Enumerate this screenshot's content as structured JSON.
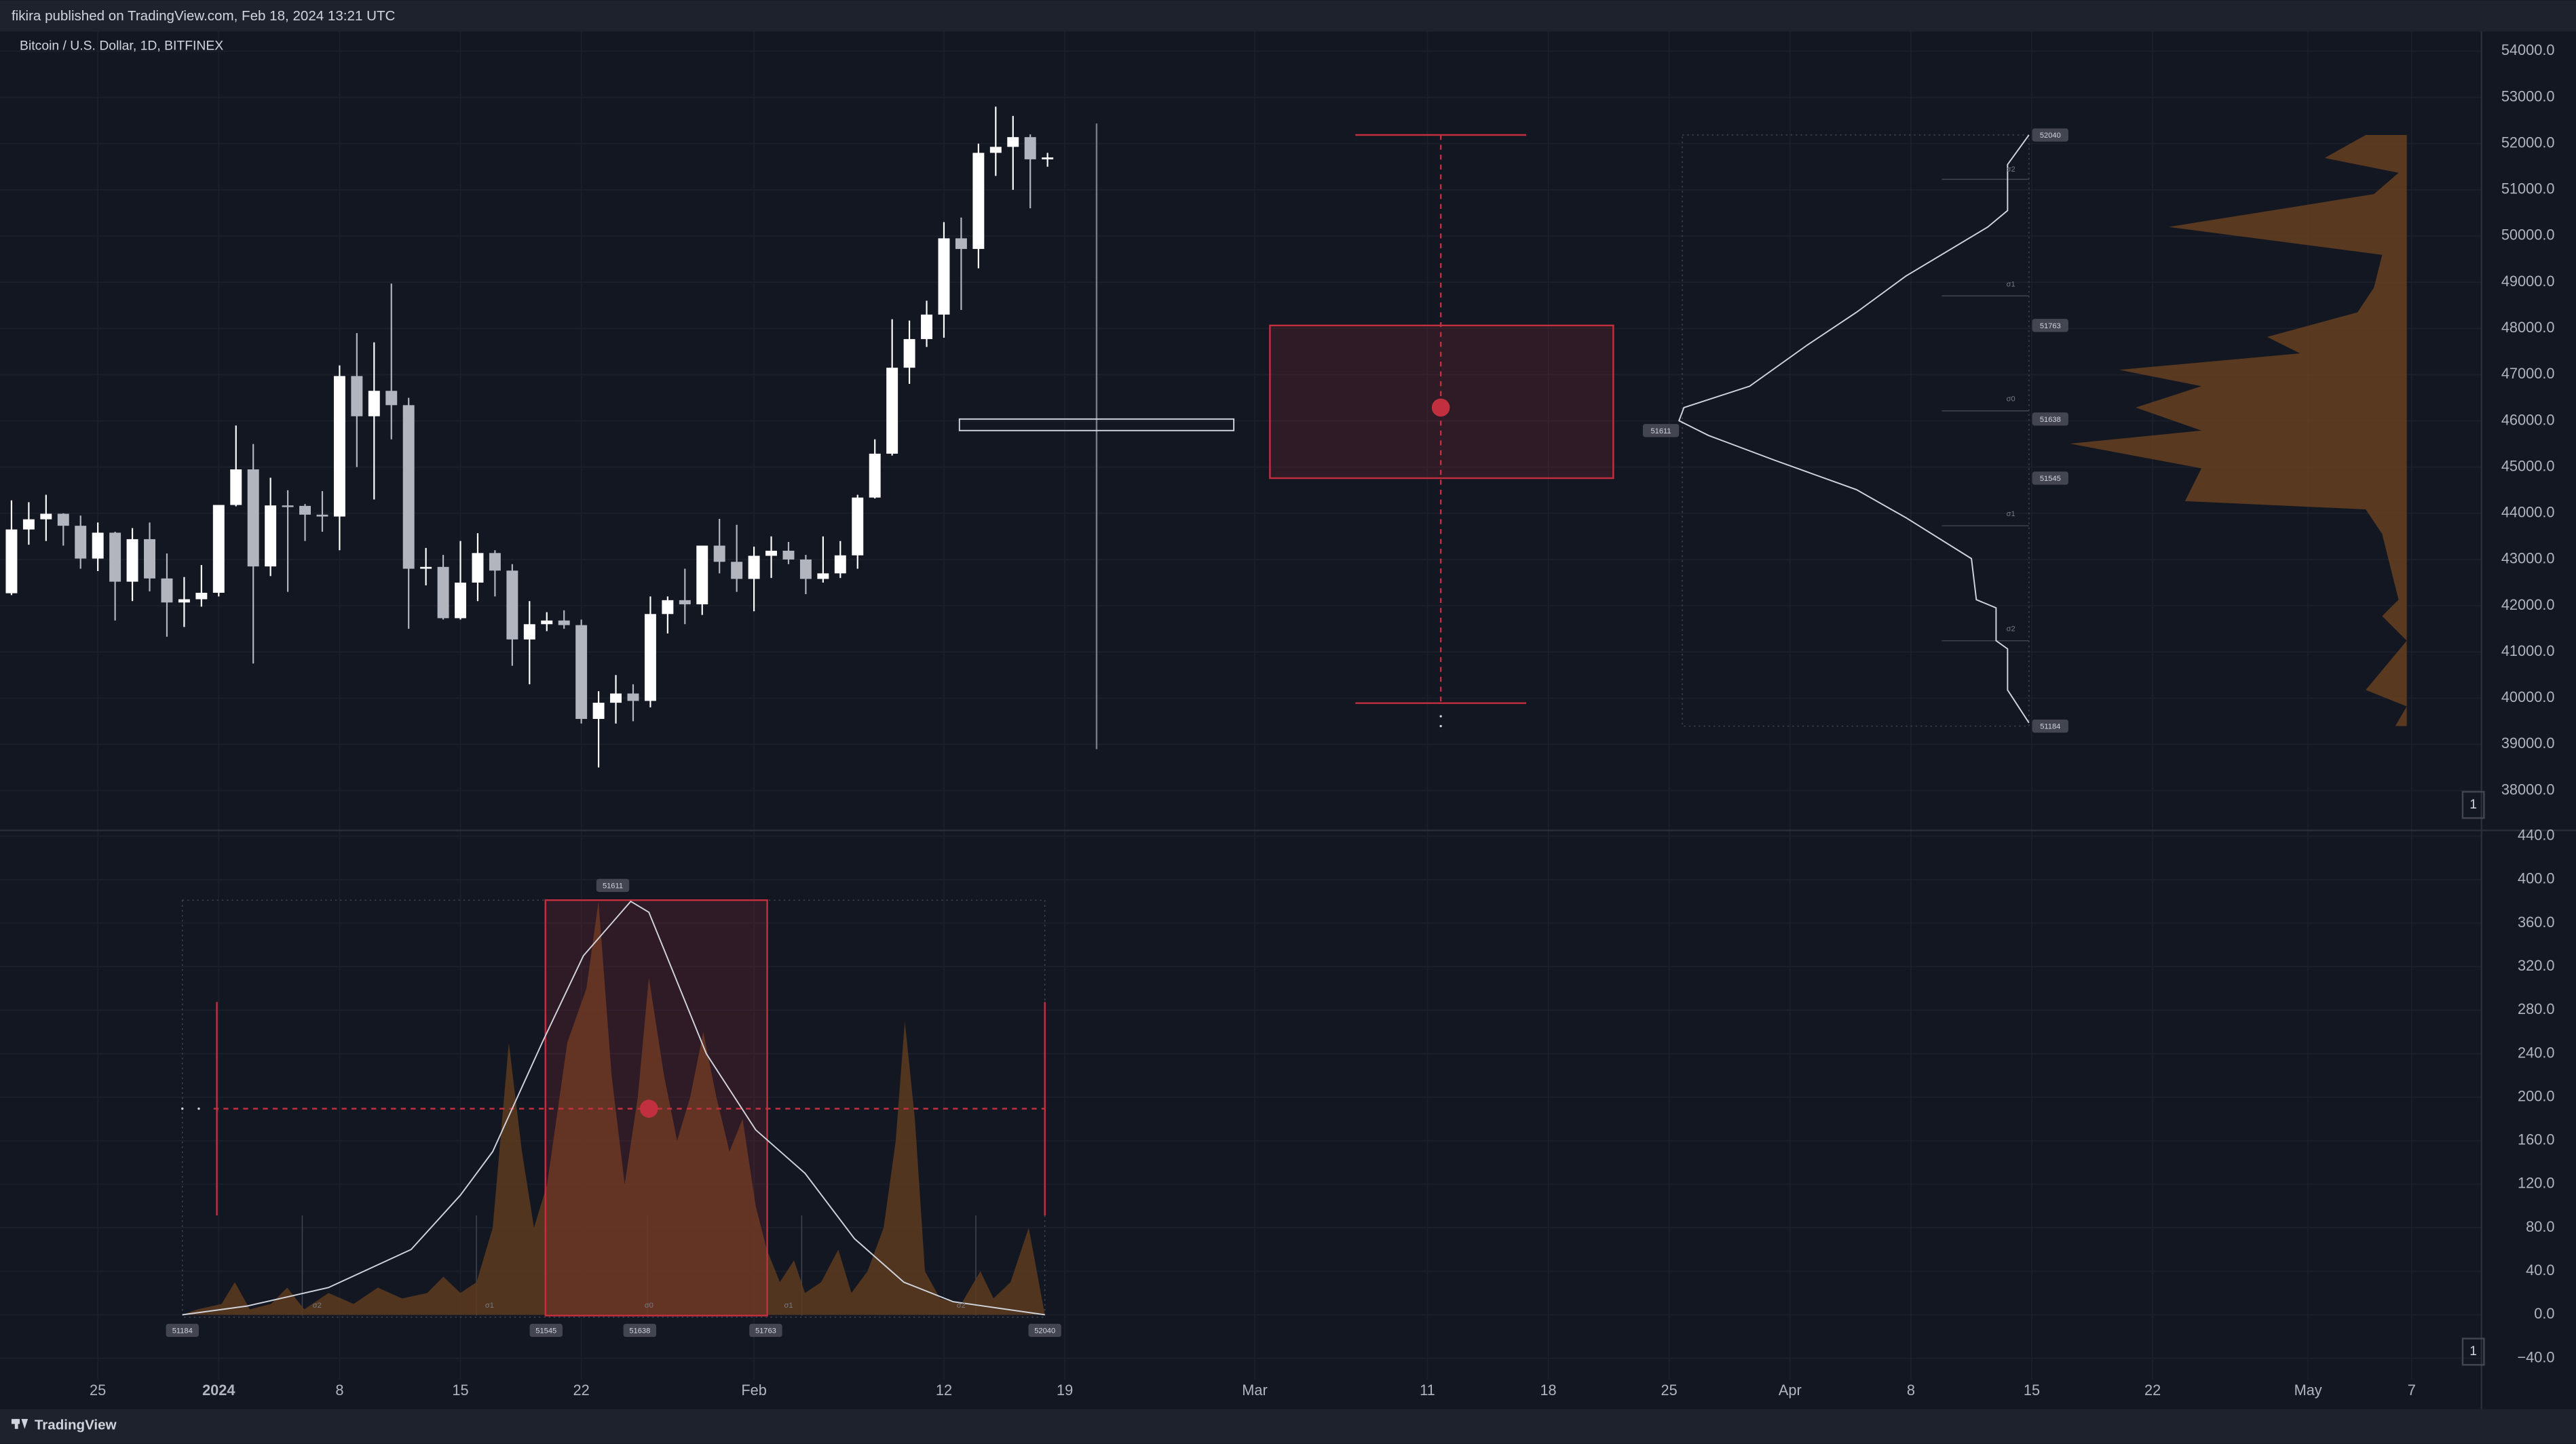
{
  "header": {
    "published": "fikira published on TradingView.com, Feb 18, 2024 13:21 UTC",
    "symbol": "Bitcoin / U.S. Dollar, 1D, BITFINEX"
  },
  "footer": {
    "brand": "TradingView"
  },
  "pane_buttons": [
    "1",
    "1"
  ],
  "chart_data": [
    {
      "type": "candlestick",
      "up_color": "#ffffff",
      "down_color": "#b2b5be",
      "grid": true,
      "x": [
        "Dec 20",
        "Dec 21",
        "Dec 22",
        "Dec 23",
        "Dec 24",
        "Dec 25",
        "Dec 26",
        "Dec 27",
        "Dec 28",
        "Dec 29",
        "Dec 30",
        "Dec 31",
        "Jan 1",
        "Jan 2",
        "Jan 3",
        "Jan 4",
        "Jan 5",
        "Jan 6",
        "Jan 7",
        "Jan 8",
        "Jan 9",
        "Jan 10",
        "Jan 11",
        "Jan 12",
        "Jan 13",
        "Jan 14",
        "Jan 15",
        "Jan 16",
        "Jan 17",
        "Jan 18",
        "Jan 19",
        "Jan 20",
        "Jan 21",
        "Jan 22",
        "Jan 23",
        "Jan 24",
        "Jan 25",
        "Jan 26",
        "Jan 27",
        "Jan 28",
        "Jan 29",
        "Jan 30",
        "Jan 31",
        "Feb 1",
        "Feb 2",
        "Feb 3",
        "Feb 4",
        "Feb 5",
        "Feb 6",
        "Feb 7",
        "Feb 8",
        "Feb 9",
        "Feb 10",
        "Feb 11",
        "Feb 12",
        "Feb 13",
        "Feb 14",
        "Feb 15",
        "Feb 16",
        "Feb 17",
        "Feb 18"
      ],
      "open": [
        42270,
        43650,
        43870,
        43990,
        43730,
        43020,
        43580,
        42520,
        43440,
        42590,
        42070,
        42140,
        42280,
        44180,
        44950,
        42850,
        44170,
        44160,
        43970,
        43930,
        46970,
        46100,
        46650,
        46340,
        42800,
        42840,
        41730,
        42500,
        43140,
        42760,
        41270,
        41600,
        41680,
        41580,
        39550,
        39900,
        40100,
        39940,
        41820,
        42120,
        42030,
        43300,
        42950,
        42580,
        43080,
        43190,
        43000,
        42580,
        42700,
        43090,
        44340,
        45290,
        47150,
        47770,
        48300,
        49950,
        49720,
        51800,
        51930,
        52140,
        51660
      ],
      "high": [
        44280,
        44240,
        44400,
        44000,
        43950,
        43800,
        43600,
        43680,
        43800,
        43130,
        42620,
        42880,
        44180,
        45900,
        45500,
        44770,
        44500,
        44200,
        44480,
        47200,
        47900,
        47700,
        48970,
        46500,
        43250,
        43100,
        43400,
        43570,
        43200,
        42900,
        42100,
        41860,
        41900,
        41700,
        40150,
        40500,
        40300,
        42200,
        42200,
        42800,
        43300,
        43880,
        43750,
        43280,
        43500,
        43380,
        43100,
        43500,
        43400,
        44400,
        45600,
        48200,
        48170,
        48600,
        50300,
        50400,
        52000,
        52800,
        52600,
        52200,
        51800
      ],
      "low": [
        42230,
        43320,
        43400,
        43300,
        42800,
        42750,
        41680,
        42100,
        42310,
        41330,
        41540,
        41980,
        42200,
        44150,
        40750,
        42640,
        42300,
        43400,
        43600,
        43200,
        45000,
        44300,
        45600,
        41500,
        42440,
        41700,
        41700,
        42100,
        42200,
        40700,
        40300,
        41450,
        41500,
        39450,
        38500,
        39450,
        39500,
        39800,
        41400,
        41600,
        41800,
        42700,
        42300,
        41880,
        42600,
        42900,
        42250,
        42500,
        42600,
        42800,
        44320,
        45250,
        46800,
        47600,
        47800,
        48400,
        49300,
        51300,
        51000,
        50600,
        51500
      ],
      "close": [
        43650,
        43870,
        43990,
        43730,
        43020,
        43580,
        42520,
        43440,
        42590,
        42070,
        42140,
        42280,
        44180,
        44950,
        42850,
        44170,
        44160,
        43970,
        43930,
        46970,
        46100,
        46650,
        46340,
        42800,
        42840,
        41730,
        42500,
        43140,
        42760,
        41270,
        41600,
        41680,
        41580,
        39550,
        39900,
        40100,
        39940,
        41820,
        42120,
        42030,
        43300,
        42950,
        42580,
        43080,
        43190,
        43000,
        42580,
        42700,
        43090,
        44340,
        45290,
        47150,
        47770,
        48300,
        49950,
        49720,
        51800,
        51930,
        52140,
        51660,
        51700
      ],
      "xlim": [
        "Dec 20",
        "May 11"
      ],
      "xticks": [
        {
          "value": "Dec 25",
          "label": "25"
        },
        {
          "value": "Jan 1",
          "label": "2024"
        },
        {
          "value": "Jan 8",
          "label": "8"
        },
        {
          "value": "Jan 15",
          "label": "15"
        },
        {
          "value": "Jan 22",
          "label": "22"
        },
        {
          "value": "Feb 1",
          "label": "Feb"
        },
        {
          "value": "Feb 12",
          "label": "12"
        },
        {
          "value": "Feb 19",
          "label": "19"
        },
        {
          "value": "Mar 1",
          "label": "Mar"
        },
        {
          "value": "Mar 11",
          "label": "11"
        },
        {
          "value": "Mar 18",
          "label": "18"
        },
        {
          "value": "Mar 25",
          "label": "25"
        },
        {
          "value": "Apr 1",
          "label": "Apr"
        },
        {
          "value": "Apr 8",
          "label": "8"
        },
        {
          "value": "Apr 15",
          "label": "15"
        },
        {
          "value": "Apr 22",
          "label": "22"
        },
        {
          "value": "May 1",
          "label": "May"
        },
        {
          "value": "May 7",
          "label": "7"
        }
      ],
      "ylim": [
        37156,
        54425
      ],
      "yticks": [
        {
          "value": 38000,
          "label": "38000.0"
        },
        {
          "value": 39000,
          "label": "39000.0"
        },
        {
          "value": 40000,
          "label": "40000.0"
        },
        {
          "value": 41000,
          "label": "41000.0"
        },
        {
          "value": 42000,
          "label": "42000.0"
        },
        {
          "value": 43000,
          "label": "43000.0"
        },
        {
          "value": 44000,
          "label": "44000.0"
        },
        {
          "value": 45000,
          "label": "45000.0"
        },
        {
          "value": 46000,
          "label": "46000.0"
        },
        {
          "value": 47000,
          "label": "47000.0"
        },
        {
          "value": 48000,
          "label": "48000.0"
        },
        {
          "value": 49000,
          "label": "49000.0"
        },
        {
          "value": 50000,
          "label": "50000.0"
        },
        {
          "value": 51000,
          "label": "51000.0"
        },
        {
          "value": 52000,
          "label": "52000.0"
        },
        {
          "value": 53000,
          "label": "53000.0"
        },
        {
          "value": 54000,
          "label": "54000.0"
        }
      ]
    },
    {
      "type": "area",
      "grid": true,
      "series": [
        {
          "color": "#5d3b1e",
          "x": [
            51184,
            51199,
            51223,
            51236,
            51251,
            51272,
            51288,
            51305,
            51329,
            51354,
            51378,
            51402,
            51427,
            51443,
            51460,
            51476,
            51492,
            51508,
            51521,
            51533,
            51546,
            51566,
            51585,
            51597,
            51610,
            51623,
            51636,
            51647,
            51662,
            51675,
            51688,
            51701,
            51714,
            51727,
            51740,
            51753,
            51764,
            51777,
            51791,
            51802,
            51818,
            51835,
            51848,
            51864,
            51880,
            51892,
            51901,
            51911,
            51921,
            51936,
            51957,
            51976,
            51989,
            52006,
            52024,
            52040
          ],
          "values": [
            0,
            5,
            10,
            30,
            5,
            10,
            25,
            5,
            20,
            10,
            25,
            15,
            20,
            35,
            20,
            30,
            80,
            250,
            150,
            80,
            120,
            250,
            300,
            380,
            220,
            120,
            200,
            310,
            220,
            160,
            200,
            260,
            200,
            150,
            180,
            100,
            60,
            30,
            50,
            20,
            30,
            60,
            20,
            40,
            80,
            160,
            270,
            180,
            40,
            15,
            10,
            40,
            15,
            30,
            80,
            0
          ]
        },
        {
          "color": "#d1d4dc",
          "x": [
            51184,
            51248,
            51329,
            51411,
            51460,
            51492,
            51541,
            51582,
            51629,
            51647,
            51704,
            51753,
            51802,
            51851,
            51900,
            51949,
            52040
          ],
          "values": [
            0,
            8,
            25,
            60,
            110,
            150,
            250,
            330,
            380,
            370,
            240,
            170,
            130,
            70,
            30,
            12,
            0
          ]
        }
      ],
      "xlim": [
        51014.4,
        53465.1
      ],
      "xticks": [
        51184,
        51545,
        51638,
        51763,
        52040
      ],
      "ylim": [
        -59.6,
        444.5
      ],
      "yticks": [
        {
          "value": -40,
          "label": "−40.0"
        },
        {
          "value": 0,
          "label": "0.0"
        },
        {
          "value": 40,
          "label": "40.0"
        },
        {
          "value": 80,
          "label": "80.0"
        },
        {
          "value": 120,
          "label": "120.0"
        },
        {
          "value": 160,
          "label": "160.0"
        },
        {
          "value": 200,
          "label": "200.0"
        },
        {
          "value": 240,
          "label": "240.0"
        },
        {
          "value": 280,
          "label": "280.0"
        },
        {
          "value": 320,
          "label": "320.0"
        },
        {
          "value": 360,
          "label": "360.0"
        },
        {
          "value": 400,
          "label": "400.0"
        },
        {
          "value": 440,
          "label": "440.0"
        }
      ]
    }
  ],
  "profile_tags": [
    "52040",
    "51763",
    "51638",
    "51545",
    "51184",
    "51611"
  ],
  "profile_sigmas": [
    "σ2",
    "σ1",
    "σ0",
    "σ1",
    "σ2"
  ],
  "lower_peak_tag": "51611",
  "lower_sigmas": [
    "σ2",
    "σ1",
    "σ0",
    "σ1",
    "σ2"
  ]
}
